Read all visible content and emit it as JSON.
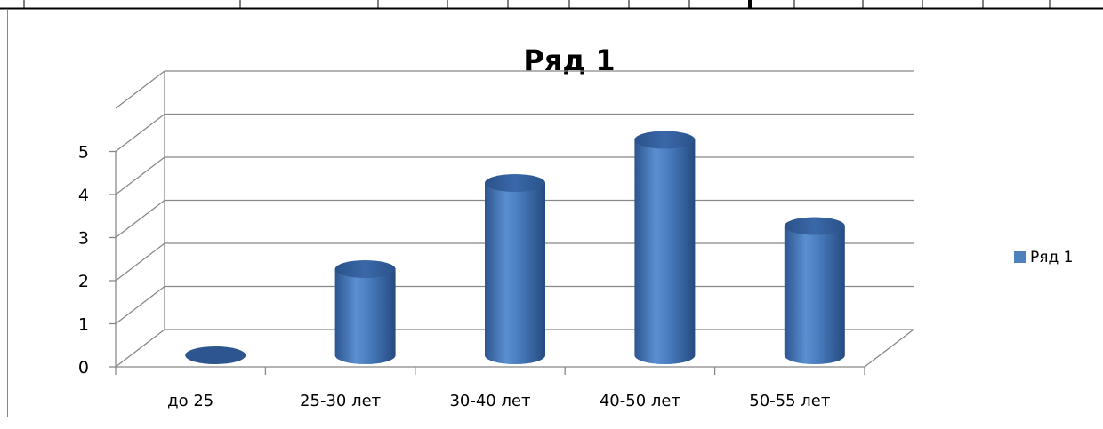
{
  "chart_data": {
    "type": "bar",
    "title": "Ряд 1",
    "categories": [
      "до 25",
      "25-30 лет",
      "30-40 лет",
      "40-50 лет",
      "50-55 лет"
    ],
    "series": [
      {
        "name": "Ряд 1",
        "values": [
          0,
          2,
          4,
          5,
          3
        ],
        "color": "#4f81bd"
      }
    ],
    "ylim": [
      0,
      5
    ],
    "yticks": [
      "0",
      "1",
      "2",
      "3",
      "4",
      "5"
    ],
    "grid": true,
    "legend": "right",
    "style": "3d-cylinder"
  }
}
